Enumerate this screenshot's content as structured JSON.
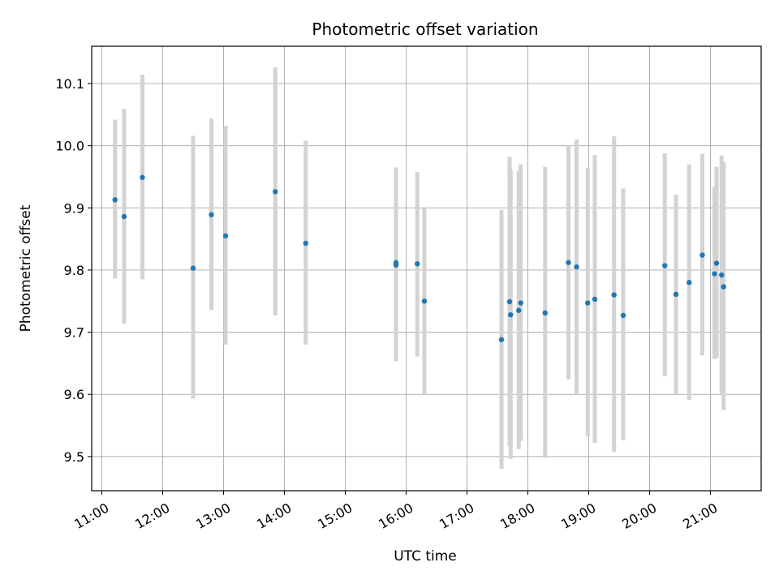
{
  "chart_data": {
    "type": "scatter",
    "title": "Photometric offset variation",
    "xlabel": "UTC time",
    "ylabel": "Photometric offset",
    "xlim": [
      "10:50",
      "21:50"
    ],
    "ylim": [
      9.445,
      10.16
    ],
    "x_ticks": [
      "11:00",
      "12:00",
      "13:00",
      "14:00",
      "15:00",
      "16:00",
      "17:00",
      "18:00",
      "19:00",
      "20:00",
      "21:00"
    ],
    "y_ticks": [
      9.5,
      9.6,
      9.7,
      9.8,
      9.9,
      10.0,
      10.1
    ],
    "grid": true,
    "colors": {
      "point": "#1f77b4",
      "errorbar": "#d3d3d3",
      "grid": "#b0b0b0"
    },
    "series": [
      {
        "points": [
          {
            "time": "11:13",
            "y": 9.913,
            "lo": 9.786,
            "hi": 10.042
          },
          {
            "time": "11:22",
            "y": 9.886,
            "lo": 9.714,
            "hi": 10.059
          },
          {
            "time": "11:40",
            "y": 9.949,
            "lo": 9.785,
            "hi": 10.114
          },
          {
            "time": "12:30",
            "y": 9.803,
            "lo": 9.593,
            "hi": 10.016
          },
          {
            "time": "12:48",
            "y": 9.889,
            "lo": 9.736,
            "hi": 10.044
          },
          {
            "time": "13:02",
            "y": 9.855,
            "lo": 9.68,
            "hi": 10.032
          },
          {
            "time": "13:51",
            "y": 9.926,
            "lo": 9.727,
            "hi": 10.126
          },
          {
            "time": "14:21",
            "y": 9.843,
            "lo": 9.68,
            "hi": 10.008
          },
          {
            "time": "15:50",
            "y": 9.812,
            "lo": 9.683,
            "hi": 9.945
          },
          {
            "time": "15:50",
            "y": 9.808,
            "lo": 9.653,
            "hi": 9.965
          },
          {
            "time": "16:11",
            "y": 9.81,
            "lo": 9.661,
            "hi": 9.958
          },
          {
            "time": "16:18",
            "y": 9.75,
            "lo": 9.601,
            "hi": 9.9
          },
          {
            "time": "17:34",
            "y": 9.688,
            "lo": 9.48,
            "hi": 9.897
          },
          {
            "time": "17:42",
            "y": 9.749,
            "lo": 9.516,
            "hi": 9.982
          },
          {
            "time": "17:43",
            "y": 9.728,
            "lo": 9.496,
            "hi": 9.962
          },
          {
            "time": "17:51",
            "y": 9.735,
            "lo": 9.512,
            "hi": 9.96
          },
          {
            "time": "17:53",
            "y": 9.747,
            "lo": 9.525,
            "hi": 9.97
          },
          {
            "time": "18:17",
            "y": 9.731,
            "lo": 9.498,
            "hi": 9.966
          },
          {
            "time": "18:40",
            "y": 9.812,
            "lo": 9.624,
            "hi": 10.001
          },
          {
            "time": "18:48",
            "y": 9.805,
            "lo": 9.601,
            "hi": 10.01
          },
          {
            "time": "18:59",
            "y": 9.747,
            "lo": 9.532,
            "hi": 9.964
          },
          {
            "time": "19:06",
            "y": 9.753,
            "lo": 9.522,
            "hi": 9.985
          },
          {
            "time": "19:25",
            "y": 9.76,
            "lo": 9.507,
            "hi": 10.015
          },
          {
            "time": "19:34",
            "y": 9.727,
            "lo": 9.526,
            "hi": 9.931
          },
          {
            "time": "20:15",
            "y": 9.807,
            "lo": 9.629,
            "hi": 9.988
          },
          {
            "time": "20:26",
            "y": 9.761,
            "lo": 9.601,
            "hi": 9.921
          },
          {
            "time": "20:39",
            "y": 9.78,
            "lo": 9.591,
            "hi": 9.97
          },
          {
            "time": "20:52",
            "y": 9.824,
            "lo": 9.663,
            "hi": 9.987
          },
          {
            "time": "21:04",
            "y": 9.794,
            "lo": 9.657,
            "hi": 9.934
          },
          {
            "time": "21:06",
            "y": 9.811,
            "lo": 9.659,
            "hi": 9.966
          },
          {
            "time": "21:11",
            "y": 9.792,
            "lo": 9.601,
            "hi": 9.984
          },
          {
            "time": "21:13",
            "y": 9.773,
            "lo": 9.575,
            "hi": 9.974
          }
        ]
      }
    ]
  }
}
